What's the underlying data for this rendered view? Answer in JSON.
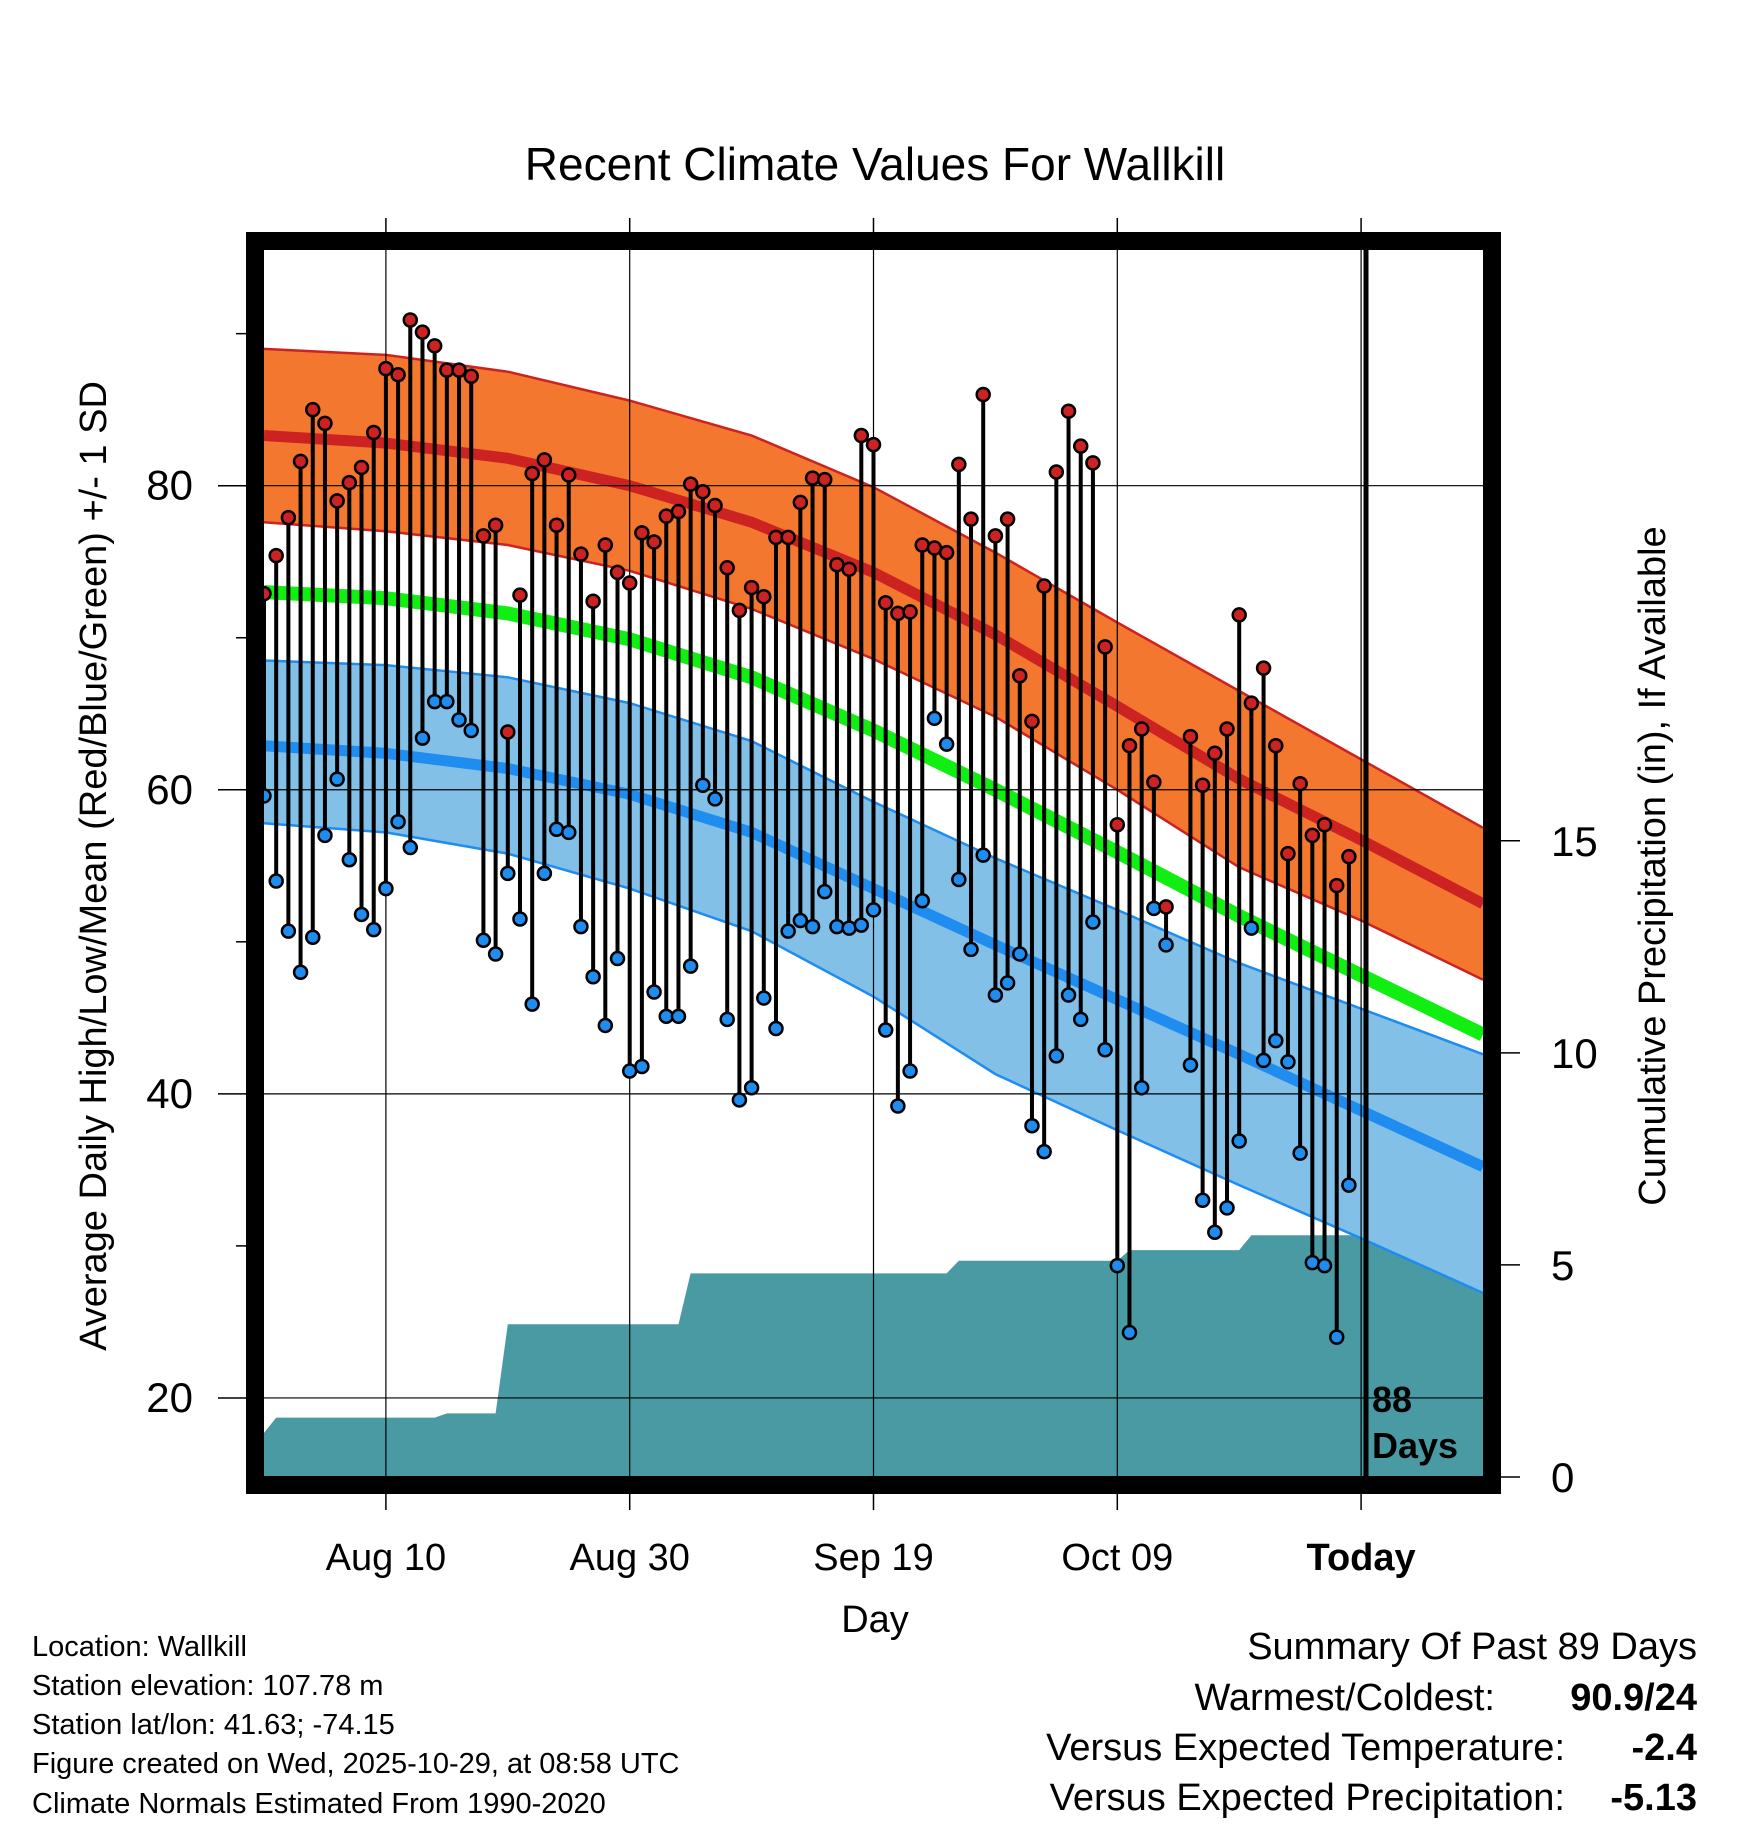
{
  "chart_data": {
    "type": "line",
    "title": "Recent Climate Values For Wallkill",
    "xlabel": "Day",
    "ylabel": "Average Daily High/Low/Mean (Red/Blue/Green) +/- 1 SD",
    "y2label": "Cumulative Precipitation (in), If Available",
    "ylim": [
      14.8,
      95.7
    ],
    "y2lim": [
      0,
      29
    ],
    "xlim_days": [
      0,
      100
    ],
    "yticks": [
      20,
      40,
      60,
      80
    ],
    "y2ticks": [
      0,
      5,
      10,
      15
    ],
    "xticks": [
      {
        "day": 10,
        "label": "Aug 10"
      },
      {
        "day": 30,
        "label": "Aug 30"
      },
      {
        "day": 50,
        "label": "Sep 19"
      },
      {
        "day": 70,
        "label": "Oct 09"
      },
      {
        "day": 90,
        "label": "Today"
      }
    ],
    "today_day": 90,
    "today_label_line1": "88",
    "today_label_line2": "Days",
    "normals": {
      "high_mean": [
        [
          0,
          83.3
        ],
        [
          10,
          82.8
        ],
        [
          20,
          81.8
        ],
        [
          30,
          80.0
        ],
        [
          40,
          77.6
        ],
        [
          50,
          74.3
        ],
        [
          60,
          70.2
        ],
        [
          70,
          65.5
        ],
        [
          80,
          60.7
        ],
        [
          90,
          56.7
        ],
        [
          100,
          52.5
        ]
      ],
      "high_upper": [
        [
          0,
          89.0
        ],
        [
          10,
          88.6
        ],
        [
          20,
          87.5
        ],
        [
          30,
          85.6
        ],
        [
          40,
          83.3
        ],
        [
          50,
          79.9
        ],
        [
          60,
          75.6
        ],
        [
          70,
          71.0
        ],
        [
          80,
          66.5
        ],
        [
          90,
          62.0
        ],
        [
          100,
          57.5
        ]
      ],
      "high_lower": [
        [
          0,
          77.6
        ],
        [
          10,
          77.0
        ],
        [
          20,
          76.1
        ],
        [
          30,
          74.4
        ],
        [
          40,
          71.9
        ],
        [
          50,
          68.6
        ],
        [
          60,
          64.8
        ],
        [
          70,
          60.0
        ],
        [
          80,
          54.9
        ],
        [
          90,
          51.4
        ],
        [
          100,
          47.5
        ]
      ],
      "low_mean": [
        [
          0,
          62.9
        ],
        [
          10,
          62.4
        ],
        [
          20,
          61.4
        ],
        [
          30,
          59.7
        ],
        [
          40,
          57.2
        ],
        [
          50,
          53.5
        ],
        [
          60,
          49.8
        ],
        [
          70,
          46.2
        ],
        [
          80,
          42.6
        ],
        [
          90,
          38.9
        ],
        [
          100,
          35.2
        ]
      ],
      "low_upper": [
        [
          0,
          68.5
        ],
        [
          10,
          68.2
        ],
        [
          20,
          67.4
        ],
        [
          30,
          65.7
        ],
        [
          40,
          63.2
        ],
        [
          50,
          59.2
        ],
        [
          60,
          55.5
        ],
        [
          70,
          52.1
        ],
        [
          80,
          48.6
        ],
        [
          90,
          45.6
        ],
        [
          100,
          42.6
        ]
      ],
      "low_lower": [
        [
          0,
          57.8
        ],
        [
          10,
          57.2
        ],
        [
          20,
          55.8
        ],
        [
          30,
          53.5
        ],
        [
          40,
          50.7
        ],
        [
          50,
          46.4
        ],
        [
          60,
          41.3
        ],
        [
          70,
          37.6
        ],
        [
          80,
          34.0
        ],
        [
          90,
          30.5
        ],
        [
          100,
          26.9
        ]
      ],
      "mean": [
        [
          0,
          73.0
        ],
        [
          10,
          72.6
        ],
        [
          20,
          71.6
        ],
        [
          30,
          69.9
        ],
        [
          40,
          67.4
        ],
        [
          50,
          63.9
        ],
        [
          60,
          60.0
        ],
        [
          70,
          55.9
        ],
        [
          80,
          51.7
        ],
        [
          90,
          47.8
        ],
        [
          100,
          43.9
        ]
      ]
    },
    "daily": {
      "high": [
        72.9,
        75.4,
        77.9,
        81.6,
        85.0,
        84.1,
        79.0,
        80.2,
        81.2,
        83.5,
        87.7,
        87.3,
        90.9,
        90.1,
        89.2,
        87.6,
        87.6,
        87.2,
        76.7,
        77.4,
        63.8,
        72.8,
        80.8,
        81.7,
        77.4,
        80.7,
        75.5,
        72.4,
        76.1,
        74.3,
        73.6,
        76.9,
        76.3,
        78.0,
        78.3,
        80.1,
        79.6,
        78.7,
        74.6,
        71.8,
        73.3,
        72.7,
        76.6,
        76.6,
        78.9,
        80.5,
        80.4,
        74.8,
        74.5,
        83.3,
        82.7,
        72.3,
        71.6,
        71.7,
        76.1,
        75.9,
        75.6,
        81.4,
        77.8,
        86.0,
        76.7,
        77.8,
        67.5,
        64.5,
        73.4,
        80.9,
        84.9,
        82.6,
        81.5,
        69.4,
        57.7,
        62.9,
        64.0,
        60.5,
        52.3,
        null,
        63.5,
        60.3,
        62.4,
        64.0,
        71.5,
        65.7,
        68.0,
        62.9,
        55.8,
        60.4,
        57.0,
        57.7,
        53.7,
        55.6
      ],
      "low": [
        59.6,
        54.0,
        50.7,
        48.0,
        50.3,
        57.0,
        60.7,
        55.4,
        51.8,
        50.8,
        53.5,
        57.9,
        56.2,
        63.4,
        65.8,
        65.8,
        64.6,
        63.9,
        50.1,
        49.2,
        54.5,
        51.5,
        45.9,
        54.5,
        57.4,
        57.2,
        51.0,
        47.7,
        44.5,
        48.9,
        41.5,
        41.8,
        46.7,
        45.1,
        45.1,
        48.4,
        60.3,
        59.4,
        44.9,
        39.6,
        40.4,
        46.3,
        44.3,
        50.7,
        51.4,
        51.0,
        53.3,
        51.0,
        50.9,
        51.1,
        52.1,
        44.2,
        39.2,
        41.5,
        52.7,
        64.7,
        63.0,
        54.1,
        49.5,
        55.7,
        46.5,
        47.3,
        49.2,
        37.9,
        36.2,
        42.5,
        46.5,
        44.9,
        51.3,
        42.9,
        28.7,
        24.3,
        40.4,
        52.2,
        49.8,
        null,
        41.9,
        33.0,
        30.9,
        32.5,
        36.9,
        50.9,
        42.2,
        43.5,
        42.1,
        36.1,
        28.9,
        28.7,
        24.0,
        34.0
      ]
    },
    "precip": [
      [
        0,
        1.04
      ],
      [
        1,
        1.4
      ],
      [
        4,
        1.4
      ],
      [
        10,
        1.4
      ],
      [
        14,
        1.4
      ],
      [
        15,
        1.5
      ],
      [
        19,
        1.5
      ],
      [
        20,
        3.6
      ],
      [
        22,
        3.6
      ],
      [
        30,
        3.6
      ],
      [
        34,
        3.6
      ],
      [
        35,
        4.8
      ],
      [
        40,
        4.8
      ],
      [
        50,
        4.8
      ],
      [
        56,
        4.8
      ],
      [
        57,
        5.1
      ],
      [
        60,
        5.1
      ],
      [
        70,
        5.1
      ],
      [
        71,
        5.35
      ],
      [
        80,
        5.35
      ],
      [
        81,
        5.7
      ],
      [
        90,
        5.7
      ],
      [
        100,
        5.7
      ]
    ]
  },
  "footer": {
    "location": "Location: Wallkill",
    "elevation": "Station elevation: 107.78 m",
    "latlon": "Station lat/lon: 41.63; -74.15",
    "created": "Figure created on Wed, 2025-10-29, at 08:58 UTC",
    "normals": "Climate Normals Estimated From 1990-2020"
  },
  "summary": {
    "title": "Summary Of Past 89 Days",
    "warmest_coldest_label": "Warmest/Coldest:",
    "warmest_coldest_value": "90.9/24",
    "temp_label": "Versus Expected Temperature:",
    "temp_value": "-2.4",
    "precip_label": "Versus Expected Precipitation:",
    "precip_value": "-5.13"
  },
  "colors": {
    "high_band": "#f4772f",
    "high_line": "#cc2222",
    "low_band": "#82c0e8",
    "low_line": "#1f8cf0",
    "mean_line": "#11ee11",
    "precip_fill": "#4a9aa4",
    "high_dot": "#cc2222",
    "low_dot": "#1f8cf0",
    "temp_value": "#1f8cf0",
    "precip_value": "#a0522d"
  }
}
